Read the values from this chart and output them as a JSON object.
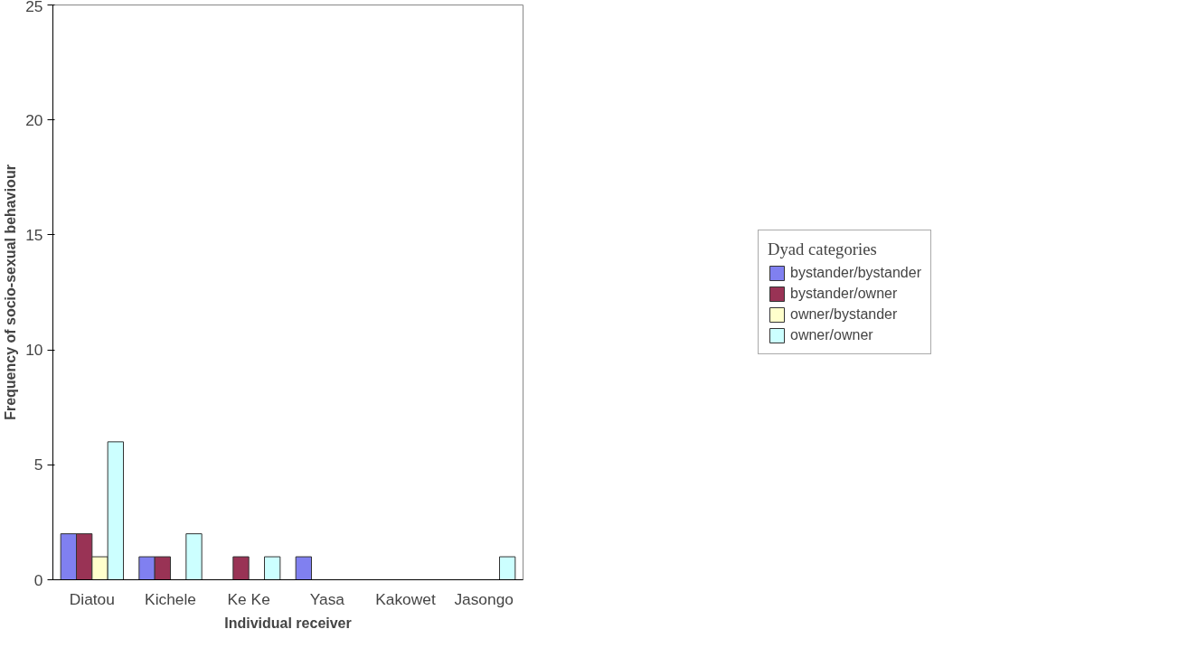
{
  "chart_data": {
    "type": "bar",
    "xlabel": "Individual receiver",
    "ylabel": "Frequency of socio-sexual behaviour",
    "legend_title": "Dyad categories",
    "categories": [
      "Diatou",
      "Kichele",
      "Ke Ke",
      "Yasa",
      "Kakowet",
      "Jasongo"
    ],
    "series": [
      {
        "name": "bystander/bystander",
        "color": "#8080f0",
        "values": [
          2,
          1,
          0,
          1,
          0,
          0
        ]
      },
      {
        "name": "bystander/owner",
        "color": "#993355",
        "values": [
          2,
          1,
          1,
          0,
          0,
          0
        ]
      },
      {
        "name": "owner/bystander",
        "color": "#ffffcc",
        "values": [
          1,
          0,
          0,
          0,
          0,
          0
        ]
      },
      {
        "name": "owner/owner",
        "color": "#ccffff",
        "values": [
          6,
          2,
          1,
          0,
          0,
          1
        ]
      }
    ],
    "ylim": [
      0,
      25
    ],
    "yticks": [
      0,
      5,
      10,
      15,
      20,
      25
    ],
    "grid": false,
    "legend": "right"
  }
}
